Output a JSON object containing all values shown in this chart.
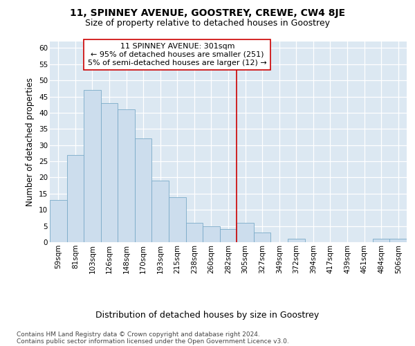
{
  "title": "11, SPINNEY AVENUE, GOOSTREY, CREWE, CW4 8JE",
  "subtitle": "Size of property relative to detached houses in Goostrey",
  "xlabel": "Distribution of detached houses by size in Goostrey",
  "ylabel": "Number of detached properties",
  "categories": [
    "59sqm",
    "81sqm",
    "103sqm",
    "126sqm",
    "148sqm",
    "170sqm",
    "193sqm",
    "215sqm",
    "238sqm",
    "260sqm",
    "282sqm",
    "305sqm",
    "327sqm",
    "349sqm",
    "372sqm",
    "394sqm",
    "417sqm",
    "439sqm",
    "461sqm",
    "484sqm",
    "506sqm"
  ],
  "values": [
    13,
    27,
    47,
    43,
    41,
    32,
    19,
    14,
    6,
    5,
    4,
    6,
    3,
    0,
    1,
    0,
    0,
    0,
    0,
    1,
    1
  ],
  "bar_color": "#ccdded",
  "bar_edge_color": "#7aaac8",
  "vline_color": "#cc0000",
  "vline_index": 11,
  "annotation_text": "11 SPINNEY AVENUE: 301sqm\n← 95% of detached houses are smaller (251)\n5% of semi-detached houses are larger (12) →",
  "annotation_box_facecolor": "#ffffff",
  "annotation_box_edgecolor": "#cc0000",
  "ylim": [
    0,
    62
  ],
  "yticks": [
    0,
    5,
    10,
    15,
    20,
    25,
    30,
    35,
    40,
    45,
    50,
    55,
    60
  ],
  "bg_color": "#dce8f2",
  "footer_line1": "Contains HM Land Registry data © Crown copyright and database right 2024.",
  "footer_line2": "Contains public sector information licensed under the Open Government Licence v3.0.",
  "title_fontsize": 10,
  "subtitle_fontsize": 9,
  "ylabel_fontsize": 8.5,
  "xlabel_fontsize": 9,
  "tick_fontsize": 7.5,
  "annot_fontsize": 8,
  "footer_fontsize": 6.5
}
